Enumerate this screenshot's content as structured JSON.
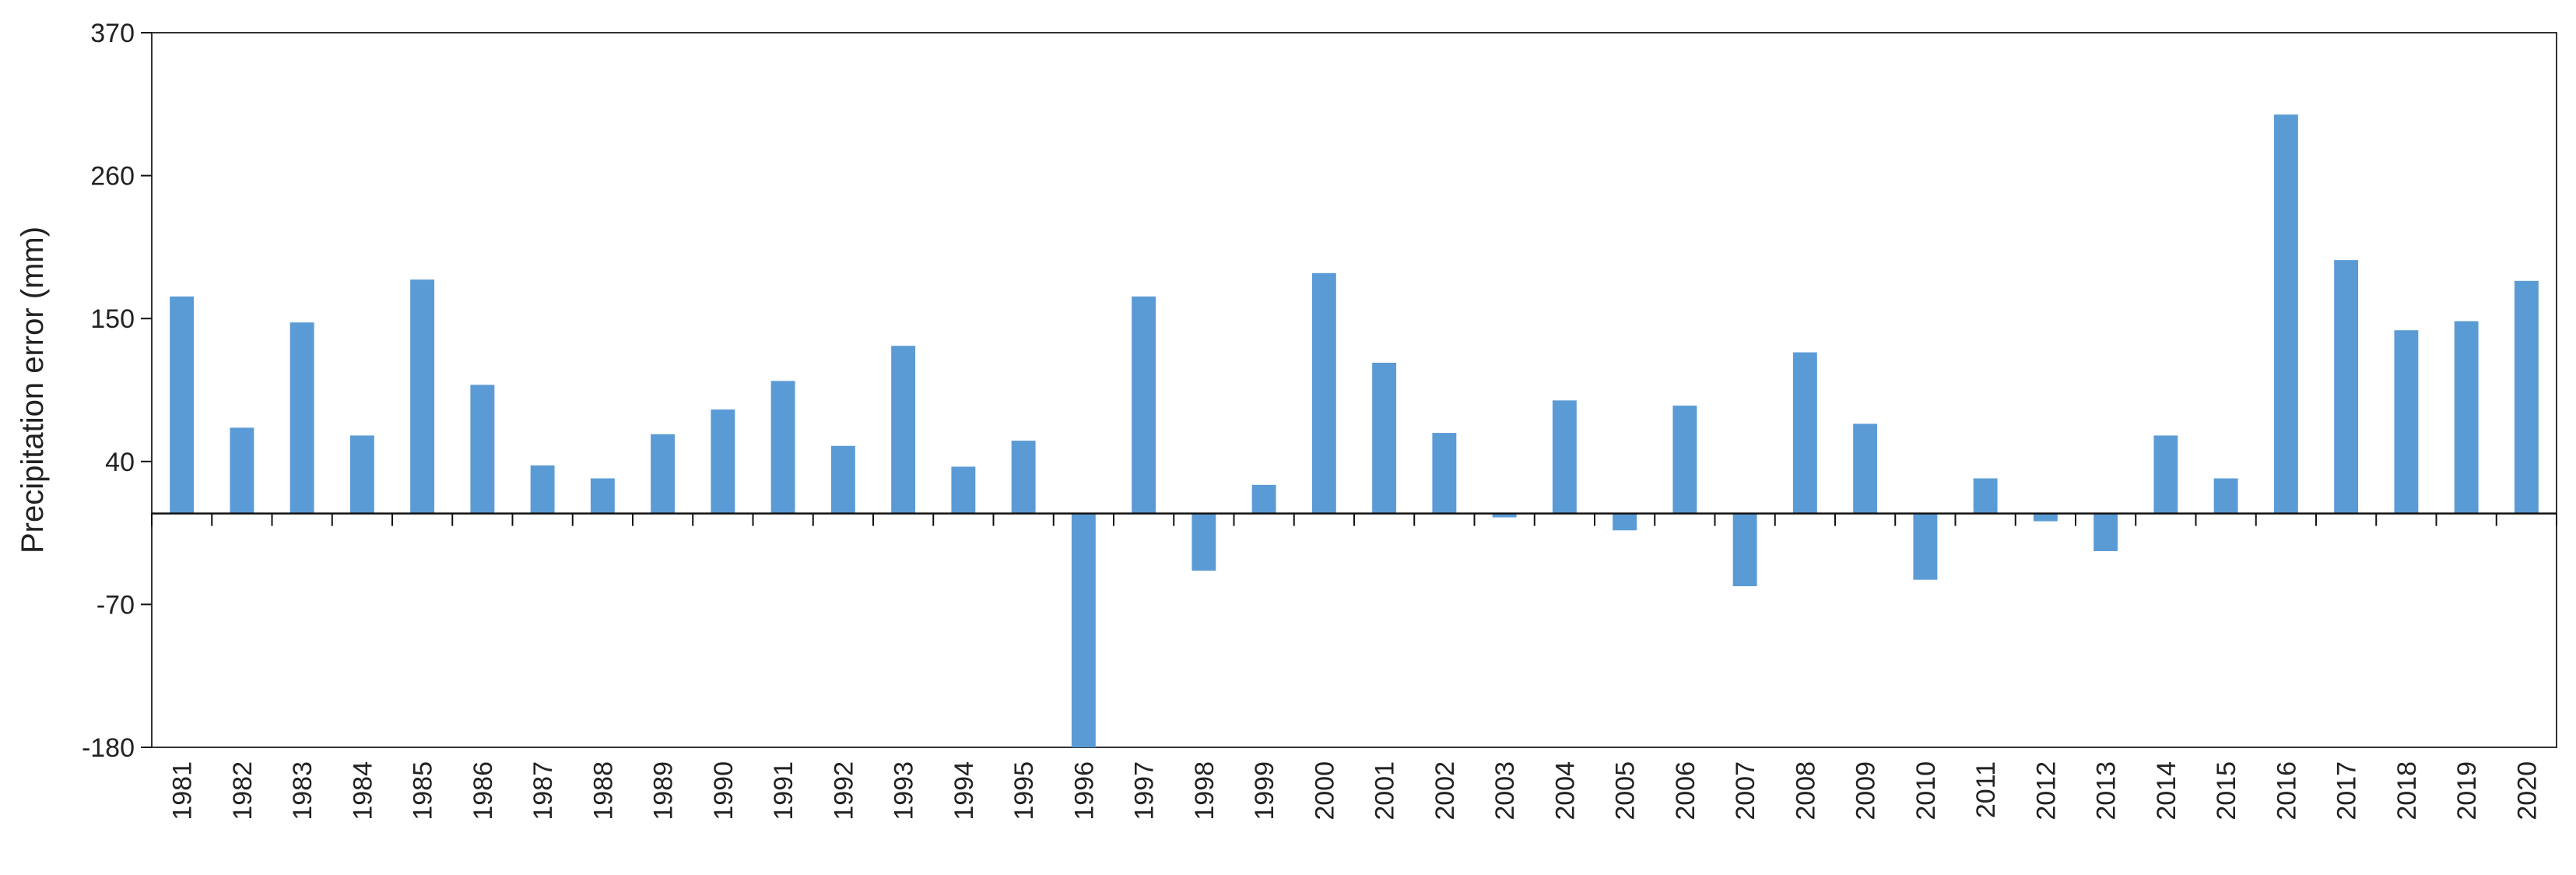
{
  "chart_data": {
    "type": "bar",
    "ylabel": "Precipitation error (mm)",
    "xlabel": "",
    "ylim": [
      -180,
      370
    ],
    "yticks": [
      -180,
      -70,
      40,
      150,
      260,
      370
    ],
    "grid": false,
    "bar_color": "#5b9bd5",
    "categories": [
      "1981",
      "1982",
      "1983",
      "1984",
      "1985",
      "1986",
      "1987",
      "1988",
      "1989",
      "1990",
      "1991",
      "1992",
      "1993",
      "1994",
      "1995",
      "1996",
      "1997",
      "1998",
      "1999",
      "2000",
      "2001",
      "2002",
      "2003",
      "2004",
      "2005",
      "2006",
      "2007",
      "2008",
      "2009",
      "2010",
      "2011",
      "2012",
      "2013",
      "2014",
      "2015",
      "2016",
      "2017",
      "2018",
      "2019",
      "2020"
    ],
    "values": [
      167,
      66,
      147,
      60,
      180,
      99,
      37,
      27,
      61,
      80,
      102,
      52,
      129,
      36,
      56,
      -180,
      167,
      -44,
      22,
      185,
      116,
      62,
      -3,
      87,
      -13,
      83,
      -56,
      124,
      69,
      -51,
      27,
      -6,
      -29,
      60,
      27,
      307,
      195,
      141,
      148,
      179
    ]
  }
}
